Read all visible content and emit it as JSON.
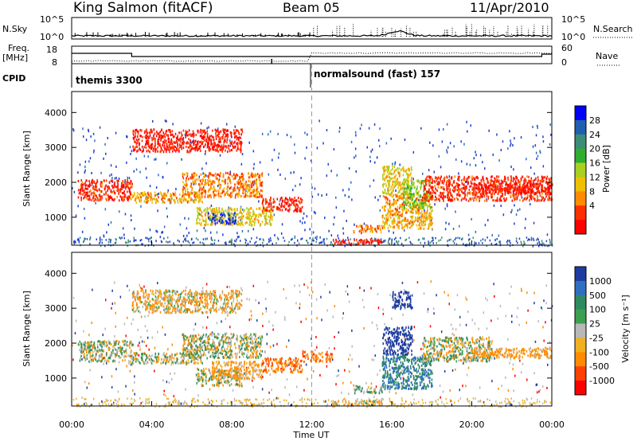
{
  "header": {
    "station": "King Salmon (fitACF)",
    "beam": "Beam 05",
    "date": "11/Apr/2010"
  },
  "chart_data": [
    {
      "type": "line",
      "name": "noise-panel",
      "left_label": "N.Sky",
      "right_label": "N.Search",
      "left_ticks": [
        "10^5",
        "10^0"
      ],
      "right_ticks": [
        "10^5",
        "10^0"
      ]
    },
    {
      "type": "line",
      "name": "frequency-panel",
      "left_label_1": "Freq.",
      "left_label_2": "[MHz]",
      "right_label": "Nave",
      "left_ticks": [
        "18",
        "8"
      ],
      "right_ticks": [
        "60",
        "0"
      ]
    },
    {
      "type": "table",
      "name": "cpid-panel",
      "label": "CPID",
      "segments": [
        {
          "text": "themis 3300",
          "start_hour": 0.0
        },
        {
          "text": "normalsound (fast) 157",
          "start_hour": 12.0
        }
      ]
    },
    {
      "type": "heatmap",
      "name": "power-panel",
      "ylabel": "Slant Range [km]",
      "y_ticks": [
        1000,
        2000,
        3000,
        4000
      ],
      "ylim": [
        200,
        4600
      ],
      "xlim": [
        0,
        24
      ],
      "colorbar_label": "Power [dB]",
      "colorbar_ticks": [
        "4",
        "8",
        "12",
        "16",
        "20",
        "24",
        "28"
      ],
      "colorbar_colors": [
        "#0000ff",
        "#1f5fb0",
        "#3c8c78",
        "#2fae2f",
        "#a8d020",
        "#f0c000",
        "#ff8c00",
        "#ff3000",
        "#ff0000"
      ],
      "regions": [
        {
          "x": [
            0.3,
            3.0
          ],
          "y": [
            1500,
            2100
          ],
          "value": 6
        },
        {
          "x": [
            3.0,
            6.5
          ],
          "y": [
            1450,
            1750
          ],
          "value": 12
        },
        {
          "x": [
            5.5,
            9.5
          ],
          "y": [
            1600,
            2300
          ],
          "value": 10
        },
        {
          "x": [
            3.0,
            8.5
          ],
          "y": [
            2900,
            3550
          ],
          "value": 5
        },
        {
          "x": [
            6.2,
            10.0
          ],
          "y": [
            800,
            1300
          ],
          "value": 14
        },
        {
          "x": [
            6.8,
            8.2
          ],
          "y": [
            850,
            1150
          ],
          "value": 28
        },
        {
          "x": [
            9.5,
            11.5
          ],
          "y": [
            1200,
            1600
          ],
          "value": 6
        },
        {
          "x": [
            13.0,
            15.5
          ],
          "y": [
            250,
            400
          ],
          "value": 5
        },
        {
          "x": [
            14.0,
            15.5
          ],
          "y": [
            600,
            800
          ],
          "value": 10
        },
        {
          "x": [
            15.5,
            18.0
          ],
          "y": [
            700,
            1700
          ],
          "value": 12
        },
        {
          "x": [
            15.5,
            17.0
          ],
          "y": [
            1700,
            2500
          ],
          "value": 14
        },
        {
          "x": [
            16.5,
            18.0
          ],
          "y": [
            1300,
            2100
          ],
          "value": 18
        },
        {
          "x": [
            17.5,
            24.0
          ],
          "y": [
            1500,
            2200
          ],
          "value": 6
        },
        {
          "x": [
            20.0,
            24.0
          ],
          "y": [
            1700,
            2000
          ],
          "value": 5
        }
      ]
    },
    {
      "type": "heatmap",
      "name": "velocity-panel",
      "ylabel": "Slant Range [km]",
      "y_ticks": [
        1000,
        2000,
        3000,
        4000
      ],
      "ylim": [
        200,
        4600
      ],
      "xlim": [
        0,
        24
      ],
      "xlabel": "Time UT",
      "x_tick_labels": [
        "00:00",
        "04:00",
        "08:00",
        "12:00",
        "16:00",
        "20:00",
        "00:00"
      ],
      "colorbar_label": "Velocity [m s⁻¹]",
      "colorbar_ticks": [
        "1000",
        "500",
        "100",
        "25",
        "-25",
        "-100",
        "-500",
        "-1000"
      ],
      "colorbar_colors": [
        "#1e3ca0",
        "#2f6fc0",
        "#2f8a60",
        "#3da050",
        "#b8b8b8",
        "#f0b020",
        "#ff8c00",
        "#ff4000",
        "#ff0000"
      ],
      "regions": [
        {
          "x": [
            0.3,
            3.0
          ],
          "y": [
            1500,
            2100
          ],
          "value": 0
        },
        {
          "x": [
            3.0,
            6.5
          ],
          "y": [
            1450,
            1750
          ],
          "value": 0
        },
        {
          "x": [
            5.5,
            9.5
          ],
          "y": [
            1600,
            2300
          ],
          "value": 0
        },
        {
          "x": [
            3.0,
            8.5
          ],
          "y": [
            2900,
            3550
          ],
          "value": -60
        },
        {
          "x": [
            6.2,
            8.5
          ],
          "y": [
            800,
            1300
          ],
          "value": 0
        },
        {
          "x": [
            7.0,
            9.5
          ],
          "y": [
            1000,
            1500
          ],
          "value": -100
        },
        {
          "x": [
            9.5,
            11.5
          ],
          "y": [
            1200,
            1600
          ],
          "value": -300
        },
        {
          "x": [
            11.5,
            13.0
          ],
          "y": [
            1500,
            1800
          ],
          "value": -300
        },
        {
          "x": [
            13.0,
            15.5
          ],
          "y": [
            250,
            400
          ],
          "value": -60
        },
        {
          "x": [
            14.0,
            15.5
          ],
          "y": [
            600,
            800
          ],
          "value": 60
        },
        {
          "x": [
            15.5,
            18.0
          ],
          "y": [
            700,
            1700
          ],
          "value": 300
        },
        {
          "x": [
            15.5,
            17.0
          ],
          "y": [
            1700,
            2500
          ],
          "value": 1000
        },
        {
          "x": [
            16.0,
            17.0
          ],
          "y": [
            3000,
            3500
          ],
          "value": 1000
        },
        {
          "x": [
            17.5,
            21.0
          ],
          "y": [
            1500,
            2200
          ],
          "value": 0
        },
        {
          "x": [
            20.0,
            24.0
          ],
          "y": [
            1600,
            1900
          ],
          "value": -100
        }
      ]
    }
  ]
}
